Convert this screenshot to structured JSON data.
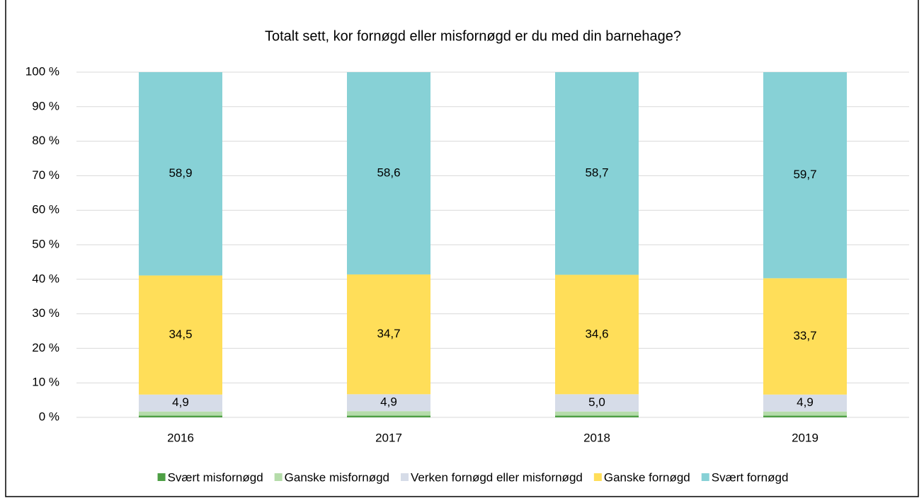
{
  "chart_data": {
    "type": "stacked_bar",
    "title": "Totalt sett, kor fornøgd eller misfornøgd er du med din barnehage?",
    "categories": [
      "2016",
      "2017",
      "2018",
      "2019"
    ],
    "series": [
      {
        "name": "Svært misfornøgd",
        "color": "#4e9f45",
        "values": [
          0.5,
          0.5,
          0.5,
          0.5
        ]
      },
      {
        "name": "Ganske misfornøgd",
        "color": "#b5dcaa",
        "values": [
          1.2,
          1.3,
          1.2,
          1.2
        ]
      },
      {
        "name": "Verken fornøgd eller misfornøgd",
        "color": "#d6dce8",
        "values": [
          4.9,
          4.9,
          5.0,
          4.9
        ],
        "value_labels": [
          "4,9",
          "4,9",
          "5,0",
          "4,9"
        ]
      },
      {
        "name": "Ganske fornøgd",
        "color": "#ffde59",
        "values": [
          34.5,
          34.7,
          34.6,
          33.7
        ],
        "value_labels": [
          "34,5",
          "34,7",
          "34,6",
          "33,7"
        ]
      },
      {
        "name": "Svært fornøgd",
        "color": "#87d1d6",
        "values": [
          58.9,
          58.6,
          58.7,
          59.7
        ],
        "value_labels": [
          "58,9",
          "58,6",
          "58,7",
          "59,7"
        ]
      }
    ],
    "ylim": [
      0,
      100
    ],
    "yticks": [
      {
        "value": 0,
        "label": "0 %"
      },
      {
        "value": 10,
        "label": "10 %"
      },
      {
        "value": 20,
        "label": "20 %"
      },
      {
        "value": 30,
        "label": "30 %"
      },
      {
        "value": 40,
        "label": "40 %"
      },
      {
        "value": 50,
        "label": "50 %"
      },
      {
        "value": 60,
        "label": "60 %"
      },
      {
        "value": 70,
        "label": "70 %"
      },
      {
        "value": 80,
        "label": "80 %"
      },
      {
        "value": 90,
        "label": "90 %"
      },
      {
        "value": 100,
        "label": "100 %"
      }
    ],
    "grid": true,
    "legend": "bottom"
  }
}
